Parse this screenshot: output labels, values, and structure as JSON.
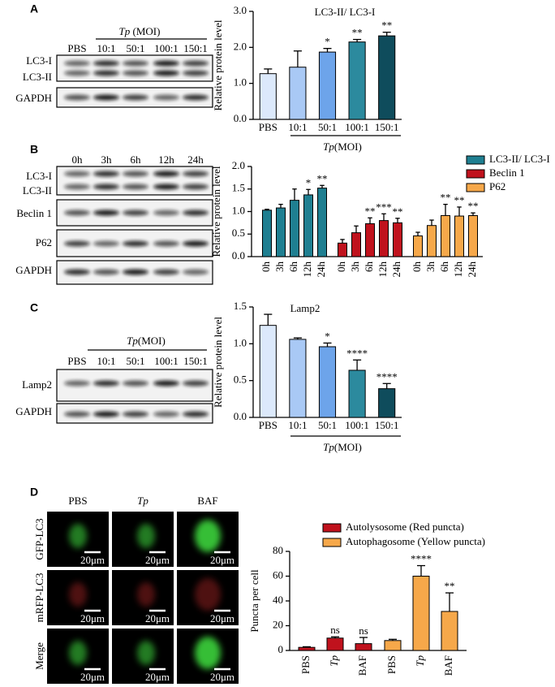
{
  "chart_data": [
    {
      "type": "bar",
      "title": "LC3-II/ LC3-I",
      "ylabel": "Relative protein level",
      "xlabel_parts": [
        "Tp",
        "(MOI)"
      ],
      "categories": [
        "PBS",
        "10:1",
        "50:1",
        "100:1",
        "150:1"
      ],
      "values": [
        1.27,
        1.45,
        1.87,
        2.15,
        2.32
      ],
      "errors": [
        0.13,
        0.45,
        0.1,
        0.07,
        0.1
      ],
      "annotations": [
        null,
        null,
        "*",
        "**",
        "**"
      ],
      "colors": [
        "#dce9fb",
        "#a9c9f5",
        "#6da4ea",
        "#2c8a9e",
        "#0f4c5c"
      ],
      "ylim": [
        0,
        3
      ],
      "yticks": [
        {
          "value": 0,
          "label": "0.0"
        },
        {
          "value": 1,
          "label": "1.0"
        },
        {
          "value": 2,
          "label": "2.0"
        },
        {
          "value": 3,
          "label": "3.0"
        }
      ]
    },
    {
      "type": "grouped_bar",
      "ylabel": "Relative protein level",
      "categories": [
        "0h",
        "3h",
        "6h",
        "12h",
        "24h"
      ],
      "series": [
        {
          "name": "LC3-II/ LC3-I",
          "color": "#1f7f91",
          "values": [
            1.03,
            1.08,
            1.25,
            1.37,
            1.52
          ],
          "errors": [
            0.02,
            0.08,
            0.25,
            0.12,
            0.06
          ],
          "annotations": [
            null,
            null,
            null,
            "*",
            "**"
          ]
        },
        {
          "name": "Beclin 1",
          "color": "#c0121d",
          "values": [
            0.3,
            0.53,
            0.73,
            0.8,
            0.75
          ],
          "errors": [
            0.08,
            0.15,
            0.13,
            0.15,
            0.1
          ],
          "annotations": [
            null,
            null,
            "**",
            "***",
            "**"
          ]
        },
        {
          "name": "P62",
          "color": "#f6a84a",
          "values": [
            0.46,
            0.69,
            0.91,
            0.9,
            0.91
          ],
          "errors": [
            0.08,
            0.12,
            0.25,
            0.2,
            0.06
          ],
          "annotations": [
            null,
            null,
            "**",
            "**",
            "**"
          ]
        }
      ],
      "ylim": [
        0,
        2
      ],
      "yticks": [
        {
          "value": 0,
          "label": "0.0"
        },
        0.5,
        {
          "value": 1,
          "label": "1.0"
        },
        1.5,
        {
          "value": 2,
          "label": "2.0"
        }
      ]
    },
    {
      "type": "bar",
      "title": "Lamp2",
      "ylabel": "Relative protein level",
      "xlabel_parts": [
        "Tp",
        "(MOI)"
      ],
      "categories": [
        "PBS",
        "10:1",
        "50:1",
        "100:1",
        "150:1"
      ],
      "values": [
        1.25,
        1.06,
        0.96,
        0.64,
        0.39
      ],
      "errors": [
        0.15,
        0.02,
        0.05,
        0.14,
        0.07
      ],
      "annotations": [
        null,
        null,
        "*",
        "****",
        "****"
      ],
      "colors": [
        "#dce9fb",
        "#a9c9f5",
        "#6da4ea",
        "#2c8a9e",
        "#0f4c5c"
      ],
      "ylim": [
        0,
        1.5
      ],
      "yticks": [
        {
          "value": 0,
          "label": "0.0"
        },
        0.5,
        {
          "value": 1,
          "label": "1.0"
        },
        1.5
      ]
    },
    {
      "type": "grouped_bar",
      "ylabel": "Puncta per cell",
      "categories": [
        "PBS",
        "Tp",
        "BAF"
      ],
      "category_italic": [
        false,
        true,
        false
      ],
      "series": [
        {
          "name": "Autolysosome (Red puncta)",
          "color": "#c0121d",
          "values": [
            2.5,
            10,
            5.5
          ],
          "errors": [
            0.5,
            1,
            5
          ],
          "annotations": [
            null,
            "ns",
            "ns"
          ]
        },
        {
          "name": "Autophagosome (Yellow puncta)",
          "color": "#f6a84a",
          "values": [
            8,
            60,
            31.5
          ],
          "errors": [
            1,
            8.5,
            15
          ],
          "annotations": [
            null,
            "****",
            "**"
          ]
        }
      ],
      "ylim": [
        0,
        80
      ],
      "yticks": [
        0,
        20,
        40,
        60,
        80
      ]
    }
  ],
  "blots": [
    {
      "panel": "A",
      "header_parts": [
        "Tp",
        " (MOI)"
      ],
      "lanes": [
        "PBS",
        "10:1",
        "50:1",
        "100:1",
        "150:1"
      ],
      "rows": [
        [
          "LC3-I",
          "LC3-II"
        ],
        [
          "GAPDH"
        ]
      ]
    },
    {
      "panel": "B",
      "lanes": [
        "0h",
        "3h",
        "6h",
        "12h",
        "24h"
      ],
      "rows": [
        [
          "LC3-I",
          "LC3-II"
        ],
        [
          "Beclin 1"
        ],
        [
          "P62"
        ],
        [
          "GAPDH"
        ]
      ]
    },
    {
      "panel": "C",
      "header_parts": [
        "Tp",
        "(MOI)"
      ],
      "lanes": [
        "PBS",
        "10:1",
        "50:1",
        "100:1",
        "150:1"
      ],
      "rows": [
        [
          "Lamp2"
        ],
        [
          "GAPDH"
        ]
      ]
    }
  ],
  "microscopy": {
    "panel": "D",
    "columns": [
      "PBS",
      "Tp",
      "BAF"
    ],
    "column_italic": [
      false,
      true,
      false
    ],
    "rows": [
      "GFP-LC3",
      "mRFP-LC3",
      "Merge"
    ],
    "scale_bar": "20μm"
  }
}
